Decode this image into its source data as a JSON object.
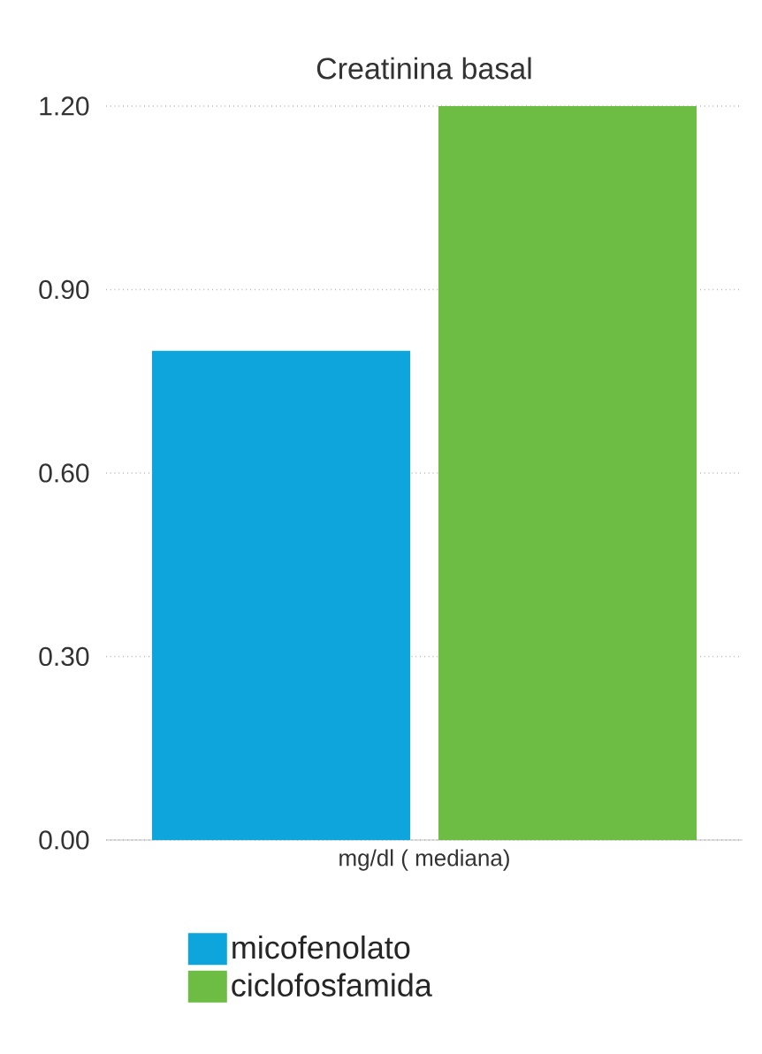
{
  "chart_data": {
    "type": "bar",
    "title": "Creatinina basal",
    "categories": [
      "mg/dl ( mediana)"
    ],
    "series": [
      {
        "name": "micofenolato",
        "color": "#0ea5dc",
        "values": [
          0.8
        ]
      },
      {
        "name": "ciclofosfamida",
        "color": "#6dbd45",
        "values": [
          1.2
        ]
      }
    ],
    "ylim": [
      0,
      1.2
    ],
    "yticks": [
      {
        "value": 0,
        "label": "0.00"
      },
      {
        "value": 0.3,
        "label": "0.30"
      },
      {
        "value": 0.6,
        "label": "0.60"
      },
      {
        "value": 0.9,
        "label": "0.90"
      },
      {
        "value": 1.2,
        "label": "1.20"
      }
    ],
    "grid": "y",
    "legend": "bottom"
  }
}
